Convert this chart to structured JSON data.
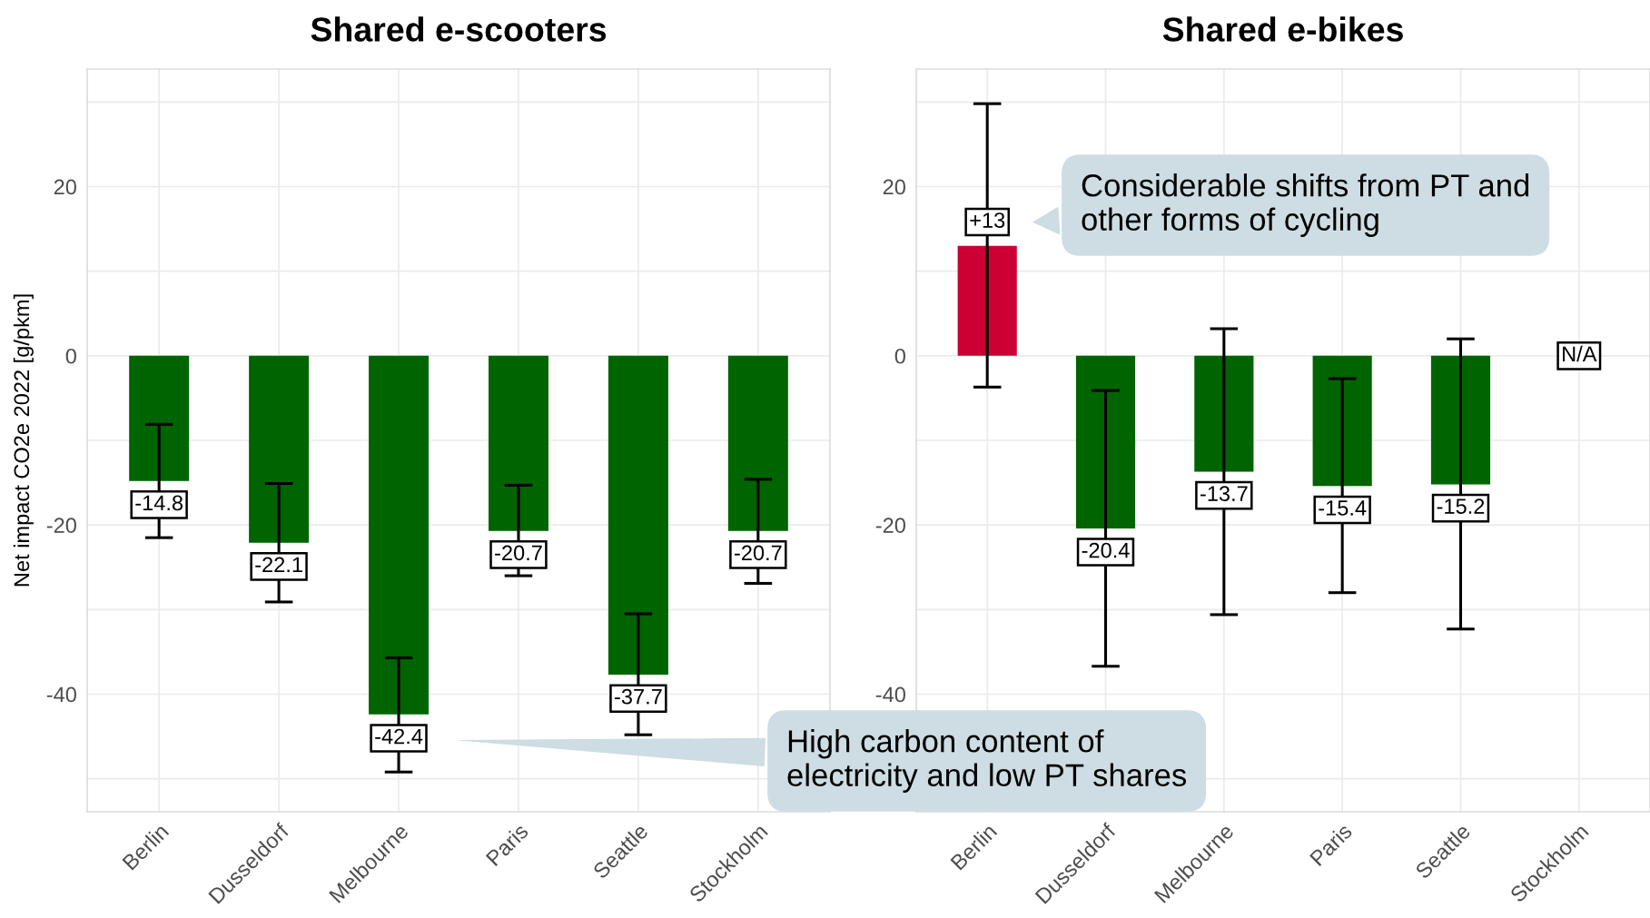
{
  "chart_data": [
    {
      "type": "bar",
      "title": "Shared e-scooters",
      "ylabel": "Net impact CO2e 2022 [g/pkm]",
      "categories": [
        "Berlin",
        "Dusseldorf",
        "Melbourne",
        "Paris",
        "Seattle",
        "Stockholm"
      ],
      "values": [
        -14.8,
        -22.1,
        -42.4,
        -20.7,
        -37.7,
        -20.7
      ],
      "colors": [
        "#006400",
        "#006400",
        "#006400",
        "#006400",
        "#006400",
        "#006400"
      ],
      "errors": [
        [
          -21.5,
          -8.1
        ],
        [
          -29.1,
          -15.1
        ],
        [
          -49.2,
          -35.7
        ],
        [
          -26.0,
          -15.3
        ],
        [
          -44.8,
          -30.5
        ],
        [
          -26.9,
          -14.6
        ]
      ],
      "value_labels": [
        "-14.8",
        "-22.1",
        "-42.4",
        "-20.7",
        "-37.7",
        "-20.7"
      ],
      "ylim": [
        -53.9,
        33.9
      ],
      "yticks": [
        {
          "value": -50,
          "label": null
        },
        -40,
        {
          "value": -30,
          "label": null
        },
        -20,
        {
          "value": -10,
          "label": null
        },
        0,
        {
          "value": 10,
          "label": null
        },
        20,
        {
          "value": 30,
          "label": null
        }
      ],
      "grid": true,
      "annotations": [
        "High carbon content of\nelectricity and low PT shares"
      ]
    },
    {
      "type": "bar",
      "title": "Shared e-bikes",
      "categories": [
        "Berlin",
        "Dusseldorf",
        "Melbourne",
        "Paris",
        "Seattle",
        "Stockholm"
      ],
      "values": [
        13,
        -20.4,
        -13.7,
        -15.4,
        -15.2,
        null
      ],
      "colors": [
        "#cc0033",
        "#006400",
        "#006400",
        "#006400",
        "#006400",
        "#006400"
      ],
      "errors": [
        [
          -3.7,
          29.8
        ],
        [
          -36.7,
          -4.1
        ],
        [
          -30.6,
          3.2
        ],
        [
          -28.0,
          -2.7
        ],
        [
          -32.3,
          2.0
        ],
        null
      ],
      "value_labels": [
        "+13",
        "-20.4",
        "-13.7",
        "-15.4",
        "-15.2",
        "N/A"
      ],
      "ylim": [
        -53.9,
        33.9
      ],
      "yticks": [
        {
          "value": -50,
          "label": null
        },
        -40,
        {
          "value": -30,
          "label": null
        },
        -20,
        {
          "value": -10,
          "label": null
        },
        0,
        {
          "value": 10,
          "label": null
        },
        20,
        {
          "value": 30,
          "label": null
        }
      ],
      "grid": true,
      "annotations": [
        "Considerable shifts from PT and\nother forms of cycling"
      ]
    }
  ]
}
